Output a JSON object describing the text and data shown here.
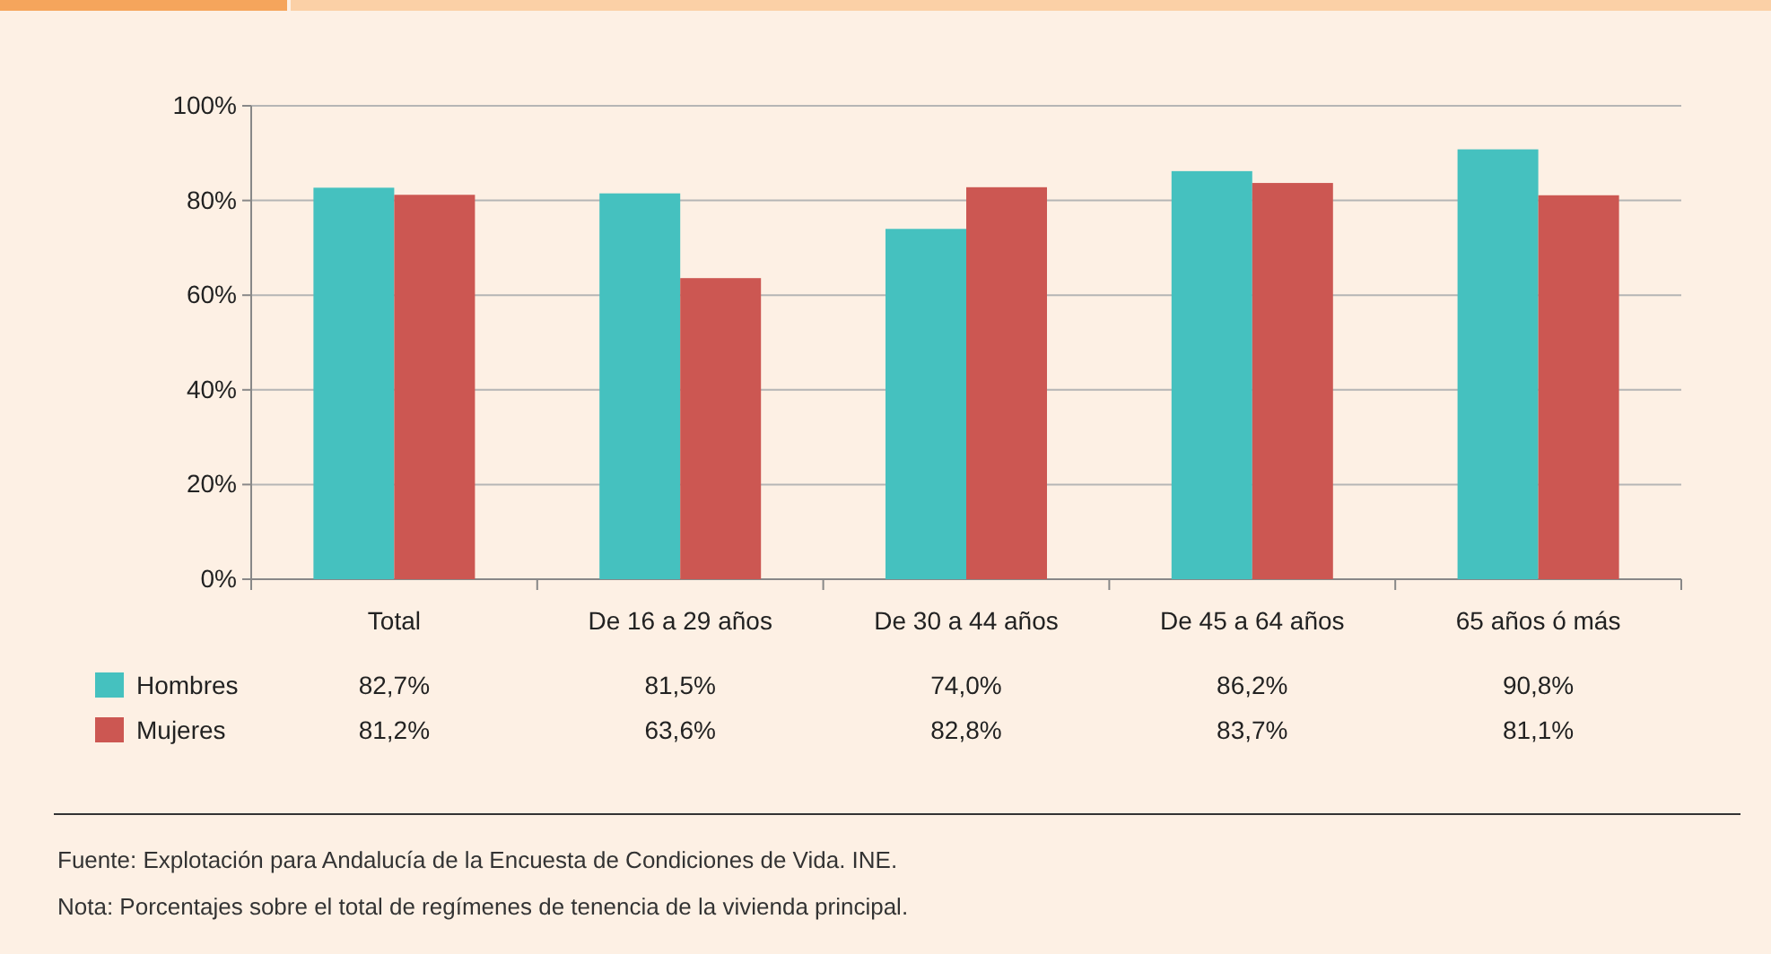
{
  "chart_data": {
    "type": "bar",
    "categories": [
      "Total",
      "De 16 a 29 años",
      "De 30 a 44 años",
      "De 45 a 64 años",
      "65 años ó más"
    ],
    "series": [
      {
        "name": "Hombres",
        "color": "#45c1bf",
        "values": [
          82.7,
          81.5,
          74.0,
          86.2,
          90.8
        ],
        "value_labels": [
          "82,7%",
          "81,5%",
          "74,0%",
          "86,2%",
          "90,8%"
        ]
      },
      {
        "name": "Mujeres",
        "color": "#cc5752",
        "values": [
          81.2,
          63.6,
          82.8,
          83.7,
          81.1
        ],
        "value_labels": [
          "81,2%",
          "63,6%",
          "82,8%",
          "83,7%",
          "81,1%"
        ]
      }
    ],
    "ylim": [
      0,
      100
    ],
    "yticks": [
      {
        "value": 0,
        "label": "0%"
      },
      {
        "value": 20,
        "label": "20%"
      },
      {
        "value": 40,
        "label": "40%"
      },
      {
        "value": 60,
        "label": "60%"
      },
      {
        "value": 80,
        "label": "80%"
      },
      {
        "value": 100,
        "label": "100%"
      }
    ],
    "grid": "y",
    "legend": "bottom",
    "annotations": [
      "Fuente: Explotación para Andalucía de la Encuesta de Condiciones de Vida. INE.",
      "Nota: Porcentajes sobre el total de regímenes de tenencia de la vivienda principal."
    ]
  }
}
